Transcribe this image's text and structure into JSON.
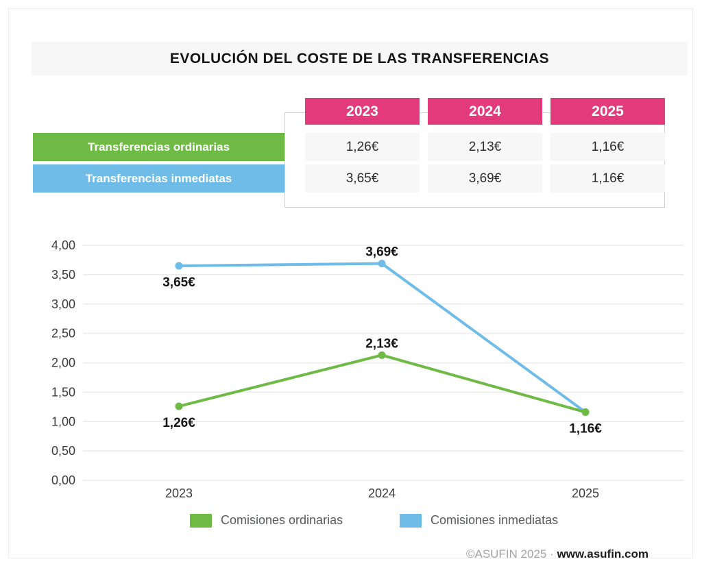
{
  "title": "EVOLUCIÓN DEL COSTE DE LAS TRANSFERENCIAS",
  "colors": {
    "green": "#6fb945",
    "blue": "#6fbce9",
    "pink": "#e23a7b"
  },
  "table": {
    "years": [
      "2023",
      "2024",
      "2025"
    ],
    "rows": [
      {
        "label": "Transferencias ordinarias",
        "color_key": "green",
        "values": [
          "1,26€",
          "2,13€",
          "1,16€"
        ]
      },
      {
        "label": "Transferencias inmediatas",
        "color_key": "blue",
        "values": [
          "3,65€",
          "3,69€",
          "1,16€"
        ]
      }
    ]
  },
  "chart_data": {
    "type": "line",
    "title": "EVOLUCIÓN DEL COSTE DE LAS TRANSFERENCIAS",
    "categories": [
      "2023",
      "2024",
      "2025"
    ],
    "series": [
      {
        "name": "Comisiones ordinarias",
        "color_key": "green",
        "values": [
          1.26,
          2.13,
          1.16
        ],
        "point_labels": [
          "1,26€",
          "2,13€",
          "1,16€"
        ],
        "label_positions": [
          "below",
          "above",
          "below"
        ]
      },
      {
        "name": "Comisiones inmediatas",
        "color_key": "blue",
        "values": [
          3.65,
          3.69,
          1.16
        ],
        "point_labels": [
          "3,65€",
          "3,69€",
          ""
        ],
        "label_positions": [
          "below",
          "above",
          "none"
        ]
      }
    ],
    "xlabel": "",
    "ylabel": "",
    "ylim": [
      0,
      4
    ],
    "ytick_step": 0.5,
    "ytick_labels": [
      "0,00",
      "0,50",
      "1,00",
      "1,50",
      "2,00",
      "2,50",
      "3,00",
      "3,50",
      "4,00"
    ],
    "grid": true,
    "legend_position": "bottom"
  },
  "legend": [
    {
      "label": "Comisiones ordinarias",
      "color_key": "green"
    },
    {
      "label": "Comisiones inmediatas",
      "color_key": "blue"
    }
  ],
  "footer": {
    "copyright": "©ASUFIN 2025 ·",
    "website": "www.asufin.com"
  }
}
